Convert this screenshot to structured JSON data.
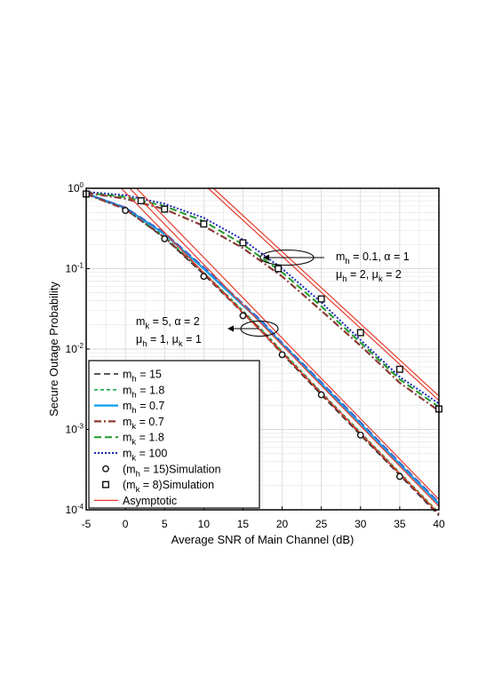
{
  "chart_data": {
    "type": "line",
    "xlabel": "Average SNR of Main Channel (dB)",
    "ylabel": "Secure Outage Probability",
    "xlim": [
      -5,
      40
    ],
    "ylim": [
      0.0001,
      1
    ],
    "yscale": "log",
    "xticks": [
      -5,
      0,
      5,
      10,
      15,
      20,
      25,
      30,
      35,
      40
    ],
    "xtick_labels": [
      "-5",
      "0",
      "5",
      "10",
      "15",
      "20",
      "25",
      "30",
      "35",
      "40"
    ],
    "yticks": [
      0.0001,
      0.001,
      0.01,
      0.1,
      1
    ],
    "ytick_labels": [
      {
        "base": "10",
        "exp": "-4"
      },
      {
        "base": "10",
        "exp": "-3"
      },
      {
        "base": "10",
        "exp": "-2"
      },
      {
        "base": "10",
        "exp": "-1"
      },
      {
        "base": "10",
        "exp": "0"
      }
    ],
    "grid": true,
    "legend_position": "bottom-left",
    "legend": [
      {
        "pre": "m",
        "sub": "h",
        "post": " = 15",
        "style": "black-dash"
      },
      {
        "pre": "m",
        "sub": "h",
        "post": " = 1.8",
        "style": "green-dash"
      },
      {
        "pre": "m",
        "sub": "h",
        "post": " = 0.7",
        "style": "cyan-solid"
      },
      {
        "pre": "m",
        "sub": "k",
        "post": " = 0.7",
        "style": "brown-dashdot"
      },
      {
        "pre": "m",
        "sub": "k",
        "post": " = 1.8",
        "style": "green-longdash"
      },
      {
        "pre": "m",
        "sub": "k",
        "post": " = 100",
        "style": "blue-dot"
      },
      {
        "pre": "(m",
        "sub": "h",
        "post": " = 15)Simulation",
        "style": "circle"
      },
      {
        "pre": "(m",
        "sub": "k",
        "post": " = 8)Simulation",
        "style": "square"
      },
      {
        "pre": "Asymptotic",
        "sub": "",
        "post": "",
        "style": "red-solid"
      }
    ],
    "annotations": [
      {
        "line1": [
          [
            "m",
            "h",
            " = 0.1, α = 1"
          ]
        ],
        "line2": [
          [
            "μ",
            "h",
            " = 2, "
          ],
          [
            "μ",
            "k",
            " = 2"
          ]
        ]
      },
      {
        "line1": [
          [
            "m",
            "k",
            " = 5, α = 2"
          ]
        ],
        "line2": [
          [
            "μ",
            "h",
            " = 1, "
          ],
          [
            "μ",
            "k",
            " = 1"
          ]
        ]
      }
    ],
    "series": [
      {
        "group": "lower",
        "style": "black-dash",
        "x": [
          -5,
          0,
          5,
          10,
          15,
          17.5,
          20,
          25,
          30,
          35,
          40
        ],
        "y": [
          0.85,
          0.55,
          0.24,
          0.085,
          0.028,
          0.016,
          0.0087,
          0.0027,
          0.00085,
          0.00027,
          8.5e-05
        ]
      },
      {
        "group": "lower",
        "style": "green-dash",
        "x": [
          -5,
          0,
          5,
          10,
          15,
          17.5,
          20,
          25,
          30,
          35,
          40
        ],
        "y": [
          0.85,
          0.56,
          0.25,
          0.09,
          0.03,
          0.017,
          0.0094,
          0.0029,
          0.00092,
          0.00029,
          9.2e-05
        ]
      },
      {
        "group": "lower",
        "style": "cyan-solid",
        "x": [
          -5,
          0,
          5,
          10,
          15,
          17.5,
          20,
          25,
          30,
          35,
          40
        ],
        "y": [
          0.86,
          0.57,
          0.27,
          0.1,
          0.035,
          0.021,
          0.0115,
          0.0037,
          0.00118,
          0.00037,
          0.000118
        ]
      },
      {
        "group": "lower",
        "style": "blue-longdash",
        "x": [
          -5,
          0,
          5,
          10,
          15,
          17.5,
          20,
          25,
          30,
          35,
          40
        ],
        "y": [
          0.86,
          0.58,
          0.28,
          0.105,
          0.037,
          0.022,
          0.012,
          0.0039,
          0.00124,
          0.00039,
          0.000124
        ]
      },
      {
        "group": "lower",
        "style": "brown-dashdot",
        "x": [
          -5,
          0,
          5,
          10,
          15,
          17.5,
          20,
          25,
          30,
          35,
          40
        ],
        "y": [
          0.85,
          0.55,
          0.245,
          0.088,
          0.029,
          0.0165,
          0.009,
          0.0028,
          0.00088,
          0.00028,
          8.8e-05
        ]
      },
      {
        "group": "upper",
        "style": "blue-dot",
        "x": [
          -5,
          0,
          5,
          10,
          15,
          20,
          25,
          30,
          35,
          40
        ],
        "y": [
          0.9,
          0.82,
          0.64,
          0.43,
          0.23,
          0.1,
          0.038,
          0.013,
          0.0045,
          0.0021
        ]
      },
      {
        "group": "upper",
        "style": "green-longdash",
        "x": [
          -5,
          0,
          5,
          10,
          15,
          20,
          25,
          30,
          35,
          40
        ],
        "y": [
          0.88,
          0.78,
          0.6,
          0.39,
          0.2,
          0.09,
          0.034,
          0.012,
          0.0042,
          0.0019
        ]
      },
      {
        "group": "upper",
        "style": "brown-dashdot",
        "x": [
          -5,
          0,
          5,
          10,
          15,
          20,
          25,
          30,
          35,
          40
        ],
        "y": [
          0.88,
          0.74,
          0.55,
          0.34,
          0.18,
          0.08,
          0.03,
          0.011,
          0.0038,
          0.0017
        ]
      }
    ],
    "simulation_circles": {
      "x": [
        -5,
        0,
        5,
        10,
        15,
        20,
        25,
        30,
        35
      ],
      "y": [
        0.85,
        0.53,
        0.235,
        0.08,
        0.026,
        0.0085,
        0.0027,
        0.00085,
        0.00026
      ]
    },
    "simulation_squares": {
      "x": [
        -5,
        2,
        5,
        10,
        15,
        19.5,
        25,
        30,
        35,
        40
      ],
      "y": [
        0.85,
        0.7,
        0.55,
        0.36,
        0.21,
        0.1,
        0.042,
        0.016,
        0.0056,
        0.0018
      ]
    },
    "asymptotic_lines": [
      {
        "x": [
          -5,
          40
        ],
        "y": [
          2.8,
          9e-05
        ]
      },
      {
        "x": [
          -5,
          40
        ],
        "y": [
          3.6,
          0.00011
        ]
      },
      {
        "x": [
          -5,
          40
        ],
        "y": [
          4.4,
          0.000135
        ]
      },
      {
        "x": [
          8,
          40
        ],
        "y": [
          1.7,
          0.0023
        ]
      },
      {
        "x": [
          8,
          40
        ],
        "y": [
          1.95,
          0.0026
        ]
      }
    ]
  }
}
